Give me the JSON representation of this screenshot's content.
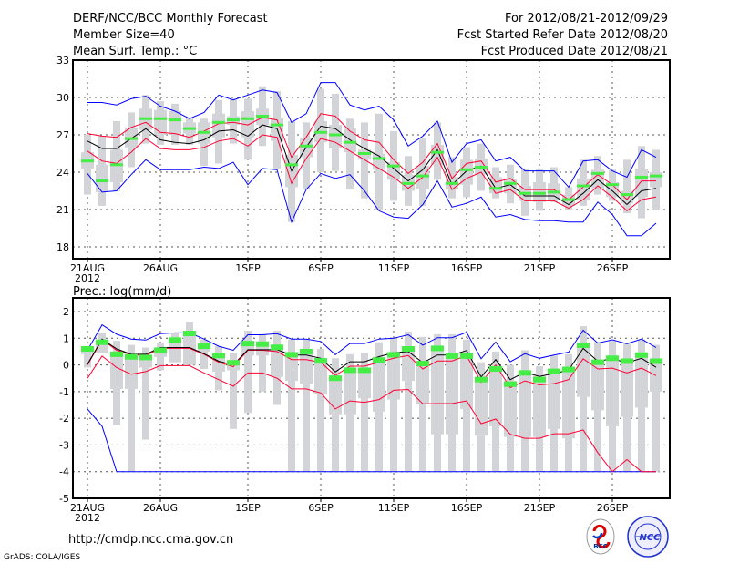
{
  "header": {
    "title": "DERF/NCC/BCC Monthly Forecast",
    "member_size": "Member Size=40",
    "variable": "Mean Surf. Temp.: °C",
    "period": "For 2012/08/21-2012/09/29",
    "fcst_started": "Fcst Started Refer Date 2012/08/20",
    "fcst_produced": "Fcst Produced Date 2012/08/21"
  },
  "footer": {
    "url": "http://cmdp.ncc.cma.gov.cn",
    "grads": "GrADS: COLA/IGES",
    "logo_bcc": "BCC",
    "logo_ncc": "NCC"
  },
  "colors": {
    "mean": "#000000",
    "spread": "#ff0033",
    "extreme": "#0000ff",
    "obs": "#44ee44",
    "bars": "#d3d4d8",
    "grid": "#555555"
  },
  "chart_data": [
    {
      "type": "line",
      "title": "Mean Surf. Temp.: °C",
      "ylim": [
        18,
        33
      ],
      "yticks": [
        18,
        21,
        24,
        27,
        30,
        33
      ],
      "xticks": [
        {
          "day": 0,
          "label": "21AUG",
          "sub": "2012"
        },
        {
          "day": 5,
          "label": "26AUG"
        },
        {
          "day": 11,
          "label": "1SEP"
        },
        {
          "day": 16,
          "label": "6SEP"
        },
        {
          "day": 21,
          "label": "11SEP"
        },
        {
          "day": 26,
          "label": "16SEP"
        },
        {
          "day": 31,
          "label": "21SEP"
        },
        {
          "day": 36,
          "label": "26SEP"
        }
      ],
      "days": 40,
      "grid": true,
      "series": {
        "mean": [
          26.5,
          25.9,
          25.9,
          26.7,
          27.5,
          26.6,
          26.4,
          26.3,
          26.6,
          27.3,
          27.4,
          26.9,
          27.8,
          27.5,
          24.1,
          26.0,
          27.7,
          27.5,
          26.6,
          25.9,
          25.3,
          24.3,
          23.3,
          24.2,
          25.8,
          23.0,
          24.1,
          24.5,
          22.7,
          23.0,
          22.1,
          22.1,
          22.1,
          21.4,
          22.3,
          23.4,
          22.5,
          21.4,
          22.5,
          22.7
        ],
        "upper": [
          27.1,
          26.9,
          26.8,
          27.6,
          28.0,
          27.2,
          27.1,
          26.8,
          27.3,
          27.9,
          28.0,
          27.8,
          28.4,
          28.2,
          25.2,
          26.8,
          28.7,
          28.5,
          27.3,
          26.6,
          26.4,
          25.0,
          23.9,
          24.8,
          26.3,
          23.5,
          24.7,
          24.9,
          23.2,
          23.5,
          22.6,
          22.6,
          22.6,
          21.8,
          22.8,
          23.8,
          23.0,
          21.8,
          23.3,
          23.3
        ],
        "lower": [
          25.7,
          24.9,
          24.7,
          25.6,
          26.7,
          25.9,
          25.8,
          25.8,
          26.0,
          26.5,
          26.7,
          26.1,
          27.0,
          26.8,
          23.1,
          25.1,
          26.7,
          26.4,
          25.7,
          25.0,
          24.3,
          23.6,
          22.7,
          23.6,
          25.2,
          22.6,
          23.5,
          24.0,
          22.3,
          22.6,
          21.7,
          21.7,
          21.7,
          21.1,
          21.8,
          22.9,
          22.0,
          20.9,
          21.8,
          22.0
        ],
        "max": [
          29.6,
          29.6,
          29.4,
          29.9,
          30.1,
          29.3,
          28.9,
          28.3,
          28.8,
          30.2,
          29.8,
          30.2,
          30.6,
          30.4,
          28.0,
          28.7,
          31.2,
          31.2,
          29.4,
          29.0,
          29.3,
          28.2,
          26.1,
          26.9,
          28.1,
          24.8,
          26.3,
          26.6,
          24.9,
          25.2,
          24.1,
          24.1,
          24.1,
          22.8,
          24.9,
          25.0,
          24.1,
          23.6,
          25.8,
          25.2
        ],
        "min": [
          23.9,
          22.4,
          22.5,
          23.8,
          25.0,
          24.2,
          24.2,
          24.2,
          24.4,
          24.3,
          24.8,
          23.0,
          24.3,
          24.2,
          20.0,
          22.6,
          23.9,
          23.5,
          23.8,
          22.5,
          20.9,
          20.4,
          20.3,
          21.4,
          23.3,
          21.2,
          21.5,
          22.0,
          20.4,
          20.6,
          20.2,
          20.1,
          20.1,
          20.0,
          20.0,
          21.6,
          20.6,
          18.9,
          18.9,
          19.9
        ],
        "observed": [
          24.9,
          23.3,
          24.6,
          26.7,
          28.3,
          28.3,
          28.2,
          27.5,
          27.2,
          28.0,
          28.2,
          28.3,
          28.5,
          27.8,
          24.6,
          26.1,
          27.2,
          27.0,
          26.4,
          25.5,
          25.1,
          24.5,
          23.1,
          23.7,
          25.6,
          23.1,
          24.2,
          24.4,
          22.7,
          23.1,
          22.3,
          22.3,
          22.4,
          21.8,
          22.9,
          23.9,
          23.0,
          22.2,
          23.6,
          23.7
        ],
        "whisker_low": [
          22.2,
          21.3,
          22.5,
          24.4,
          26.3,
          26.2,
          26.2,
          26.2,
          24.5,
          24.7,
          26.3,
          25.0,
          26.1,
          24.3,
          20.0,
          22.6,
          24.0,
          24.1,
          22.6,
          21.9,
          21.0,
          21.7,
          21.3,
          21.3,
          23.4,
          21.9,
          22.0,
          22.5,
          21.9,
          21.5,
          20.5,
          20.9,
          21.6,
          21.0,
          21.3,
          22.2,
          21.7,
          20.7,
          20.3,
          21.0
        ],
        "whisker_high": [
          27.0,
          26.9,
          28.1,
          28.8,
          30.2,
          29.7,
          29.5,
          28.4,
          28.3,
          29.8,
          29.9,
          29.9,
          30.9,
          30.5,
          28.1,
          28.0,
          30.7,
          30.3,
          28.3,
          28.0,
          28.7,
          27.3,
          25.3,
          26.7,
          28.0,
          25.2,
          26.0,
          26.3,
          24.4,
          24.6,
          24.3,
          24.3,
          24.4,
          22.8,
          25.0,
          25.3,
          24.2,
          25.0,
          26.1,
          25.8
        ],
        "box_low": [
          24.3,
          22.4,
          23.2,
          26.0,
          27.4,
          27.0,
          27.0,
          27.1,
          26.3,
          26.8,
          27.8,
          26.8,
          27.8,
          26.5,
          22.8,
          25.2,
          26.4,
          25.9,
          25.6,
          25.0,
          24.2,
          23.4,
          22.5,
          22.6,
          24.6,
          22.6,
          23.0,
          23.8,
          22.3,
          22.3,
          21.7,
          21.6,
          21.8,
          21.3,
          21.8,
          22.7,
          22.0,
          21.5,
          22.0,
          22.8
        ],
        "box_high": [
          25.6,
          24.6,
          25.8,
          27.6,
          29.1,
          29.0,
          28.9,
          28.0,
          28.0,
          28.7,
          28.5,
          28.9,
          29.1,
          28.3,
          25.4,
          26.7,
          28.1,
          27.8,
          27.5,
          25.8,
          25.5,
          24.8,
          23.8,
          24.5,
          26.2,
          23.6,
          25.0,
          25.1,
          23.6,
          23.5,
          22.9,
          23.2,
          23.1,
          22.2,
          23.5,
          24.2,
          23.2,
          22.5,
          24.3,
          24.0
        ]
      }
    },
    {
      "type": "line",
      "title": "Prec.: log(mm/d)",
      "ylim": [
        -5,
        2
      ],
      "yticks": [
        -5,
        -4,
        -3,
        -2,
        -1,
        0,
        1,
        2
      ],
      "xticks": [
        {
          "day": 0,
          "label": "21AUG",
          "sub": "2012"
        },
        {
          "day": 5,
          "label": "26AUG"
        },
        {
          "day": 11,
          "label": "1SEP"
        },
        {
          "day": 16,
          "label": "6SEP"
        },
        {
          "day": 21,
          "label": "11SEP"
        },
        {
          "day": 26,
          "label": "16SEP"
        },
        {
          "day": 31,
          "label": "21SEP"
        },
        {
          "day": 36,
          "label": "26SEP"
        }
      ],
      "days": 40,
      "grid": true,
      "series": {
        "mean": [
          0.03,
          0.97,
          0.6,
          0.4,
          0.4,
          0.65,
          0.65,
          0.65,
          0.42,
          0.14,
          0.0,
          0.57,
          0.57,
          0.57,
          0.37,
          0.37,
          0.25,
          -0.26,
          0.12,
          0.12,
          0.31,
          0.46,
          0.5,
          0.08,
          0.37,
          0.37,
          0.54,
          -0.45,
          0.2,
          -0.55,
          -0.27,
          -0.43,
          -0.32,
          -0.2,
          0.62,
          0.14,
          0.23,
          0.08,
          0.25,
          -0.09
        ],
        "upper": [
          0.0,
          0.95,
          0.55,
          0.38,
          0.35,
          0.62,
          0.62,
          0.62,
          0.4,
          0.1,
          -0.07,
          0.55,
          0.55,
          0.5,
          0.2,
          0.2,
          0.1,
          -0.4,
          -0.05,
          -0.05,
          0.1,
          0.25,
          0.35,
          -0.15,
          0.15,
          0.15,
          0.35,
          -0.65,
          0.0,
          -0.85,
          -0.6,
          -0.75,
          -0.7,
          -0.55,
          0.23,
          -0.15,
          -0.12,
          -0.3,
          -0.12,
          -0.4
        ],
        "lower": [
          -0.5,
          0.33,
          -0.1,
          -0.35,
          -0.25,
          -0.03,
          -0.03,
          -0.03,
          -0.3,
          -0.55,
          -0.8,
          -0.3,
          -0.3,
          -0.5,
          -0.9,
          -0.9,
          -1.05,
          -1.65,
          -1.35,
          -1.4,
          -1.3,
          -0.95,
          -0.92,
          -1.46,
          -1.45,
          -1.45,
          -1.35,
          -2.2,
          -2.03,
          -2.6,
          -2.75,
          -2.75,
          -2.58,
          -2.58,
          -2.44,
          -3.29,
          -4.0,
          -3.55,
          -4.0,
          -4.0
        ],
        "max": [
          0.55,
          1.5,
          1.15,
          0.97,
          0.93,
          1.17,
          1.2,
          1.2,
          0.97,
          0.7,
          0.55,
          1.13,
          1.13,
          1.17,
          0.97,
          0.97,
          0.88,
          0.38,
          0.8,
          0.8,
          0.97,
          1.0,
          1.13,
          0.74,
          1.02,
          1.02,
          1.22,
          0.23,
          0.86,
          0.12,
          0.42,
          0.25,
          0.37,
          0.48,
          1.3,
          0.82,
          0.94,
          0.79,
          0.97,
          0.65
        ],
        "min": [
          -1.65,
          -2.3,
          -4,
          -4,
          -4,
          -4,
          -4,
          -4,
          -4,
          -4,
          -4,
          -4,
          -4,
          -4,
          -4,
          -4,
          -4,
          -4,
          -4,
          -4,
          -4,
          -4,
          -4,
          -4,
          -4,
          -4,
          -4,
          -4,
          -4,
          -4,
          -4,
          -4,
          -4,
          -4,
          -4,
          -4,
          -4,
          -4,
          -4,
          -4
        ],
        "observed": [
          0.6,
          0.85,
          0.4,
          0.3,
          0.28,
          0.55,
          0.93,
          1.18,
          0.7,
          0.35,
          0.08,
          0.8,
          0.78,
          0.66,
          0.38,
          0.5,
          0.15,
          -0.5,
          -0.2,
          -0.2,
          0.18,
          0.38,
          0.6,
          0.05,
          0.62,
          0.33,
          0.33,
          -0.55,
          -0.15,
          -0.72,
          -0.3,
          -0.55,
          -0.24,
          -0.17,
          0.74,
          0.1,
          0.25,
          0.14,
          0.37,
          0.14
        ],
        "whisker_low": [
          -0.1,
          0.45,
          -2.25,
          -4,
          -2.8,
          -0.2,
          0.1,
          0.0,
          -0.15,
          -0.95,
          -2.4,
          -1.8,
          -1.0,
          -1.5,
          -4,
          -4,
          -4,
          -4,
          -4,
          -4,
          -4,
          -4,
          -4,
          -4,
          -4,
          -4,
          -4,
          -4,
          -4,
          -4,
          -4,
          -4,
          -4,
          -4,
          -4,
          -4,
          -4,
          -4,
          -4,
          -4
        ],
        "whisker_high": [
          0.7,
          1.2,
          0.9,
          0.75,
          0.65,
          0.8,
          1.2,
          1.6,
          0.95,
          0.7,
          0.45,
          1.28,
          1.15,
          1.28,
          0.95,
          0.95,
          0.6,
          0.25,
          0.4,
          0.45,
          0.85,
          1.0,
          1.25,
          1.05,
          1.15,
          1.15,
          0.95,
          0.1,
          0.5,
          0.0,
          0.55,
          -0.05,
          0.35,
          0.4,
          1.45,
          0.85,
          0.9,
          0.8,
          0.95,
          0.75
        ],
        "box_low": [
          0.4,
          0.45,
          -0.9,
          -0.9,
          -0.1,
          0.3,
          0.1,
          0.0,
          0.5,
          -0.25,
          -0.2,
          0.35,
          0.35,
          -0.45,
          -0.6,
          -0.7,
          -1.1,
          -1.85,
          -1.85,
          -1.25,
          -1.75,
          -1.3,
          -0.6,
          -1.45,
          -2.6,
          -2.6,
          -1.65,
          -2.65,
          -2.3,
          -2.7,
          -2.7,
          -2.7,
          -2.4,
          -2.75,
          -1.2,
          -1.7,
          -2.3,
          -1.95,
          -1.6,
          -1.0
        ],
        "box_high": [
          0.7,
          0.9,
          0.45,
          0.4,
          0.35,
          0.65,
          1.0,
          1.25,
          0.75,
          0.4,
          0.15,
          0.9,
          0.85,
          0.7,
          0.45,
          0.55,
          0.25,
          -0.4,
          -0.15,
          -0.15,
          0.3,
          0.45,
          0.7,
          0.1,
          0.65,
          0.35,
          0.35,
          -0.45,
          -0.15,
          -0.6,
          -0.2,
          -0.4,
          -0.3,
          -0.2,
          0.75,
          0.15,
          0.2,
          0.1,
          0.3,
          0.15
        ]
      }
    }
  ]
}
